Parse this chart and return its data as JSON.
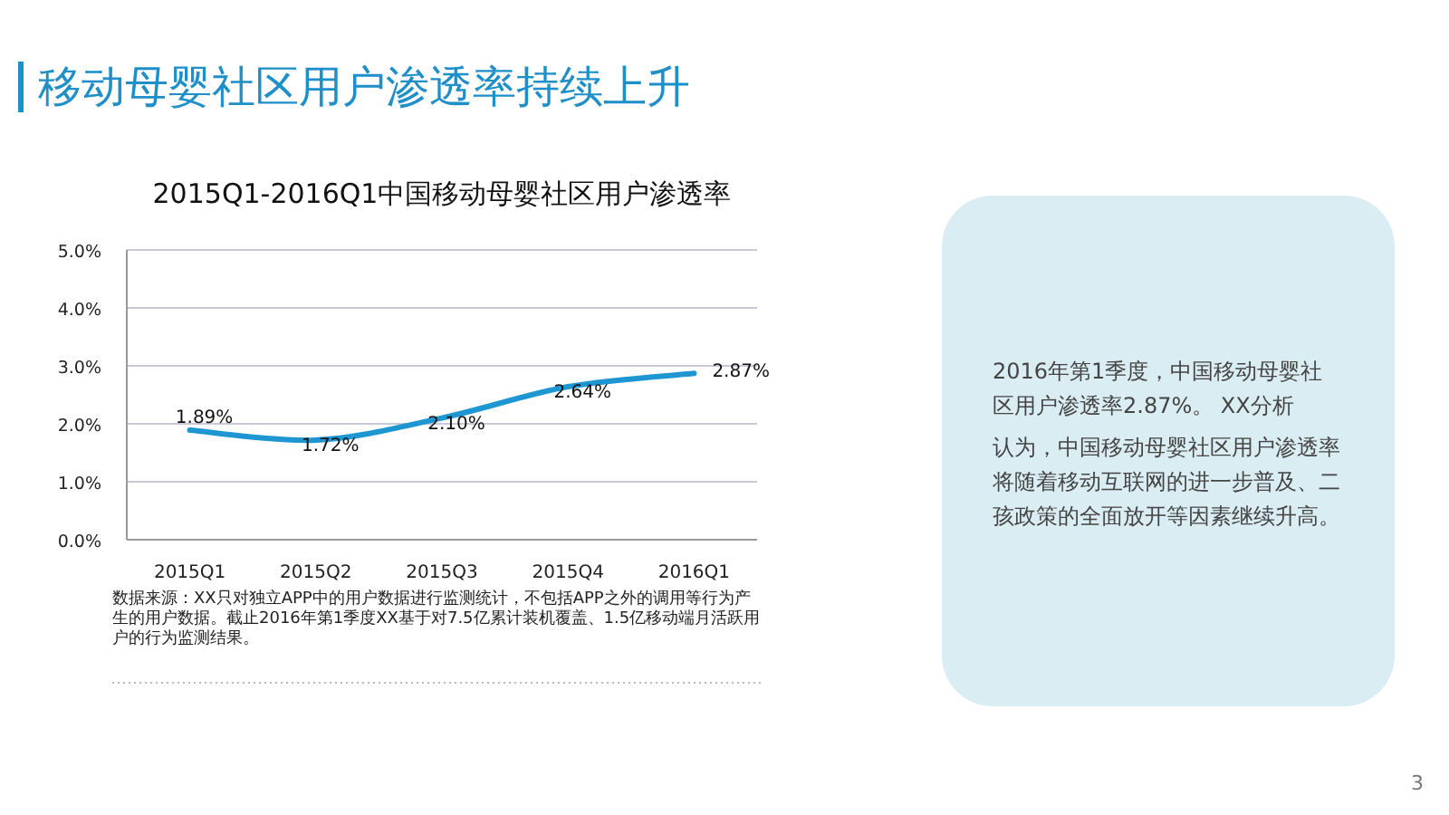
{
  "chart_data": [
    {
      "type": "line",
      "title": "2015Q1-2016Q1中国移动母婴社区用户渗透率",
      "categories": [
        "2015Q1",
        "2015Q2",
        "2015Q3",
        "2015Q4",
        "2016Q1"
      ],
      "series": [
        {
          "color": "#1e96d2",
          "values": [
            1.89,
            1.72,
            2.1,
            2.64,
            2.87
          ],
          "value_labels": [
            "1.89%",
            "1.72%",
            "2.10%",
            "2.64%",
            "2.87%"
          ]
        }
      ],
      "ylim": [
        0,
        5
      ],
      "yticks": [
        {
          "value": 0,
          "label": "0.0%"
        },
        {
          "value": 1,
          "label": "1.0%"
        },
        {
          "value": 2,
          "label": "2.0%"
        },
        {
          "value": 3,
          "label": "3.0%"
        },
        {
          "value": 4,
          "label": "4.0%"
        },
        {
          "value": 5,
          "label": "5.0%"
        }
      ],
      "grid": "y",
      "marker": "none",
      "line_style": "solid",
      "annotations": [
        "移动母婴社区用户渗透率持续上升",
        "数据来源：XX只对独立APP中的用户数据进行监测统计，不包括APP之外的调用等行为产生的用户数据。截止2016年第1季度XX基于对7.5亿累计装机覆盖、1.5亿移动端月活跃用户的行为监测结果。",
        "3"
      ]
    },
    {
      "type": "other",
      "annotations": [
        "2016年第1季度，中国移动母婴社区用户渗透率2.87%。 XX分析",
        "认为，中国移动母婴社区用户渗透率将随着移动互联网的进一步普及、二孩政策的全面放开等因素继续升高。"
      ]
    }
  ]
}
